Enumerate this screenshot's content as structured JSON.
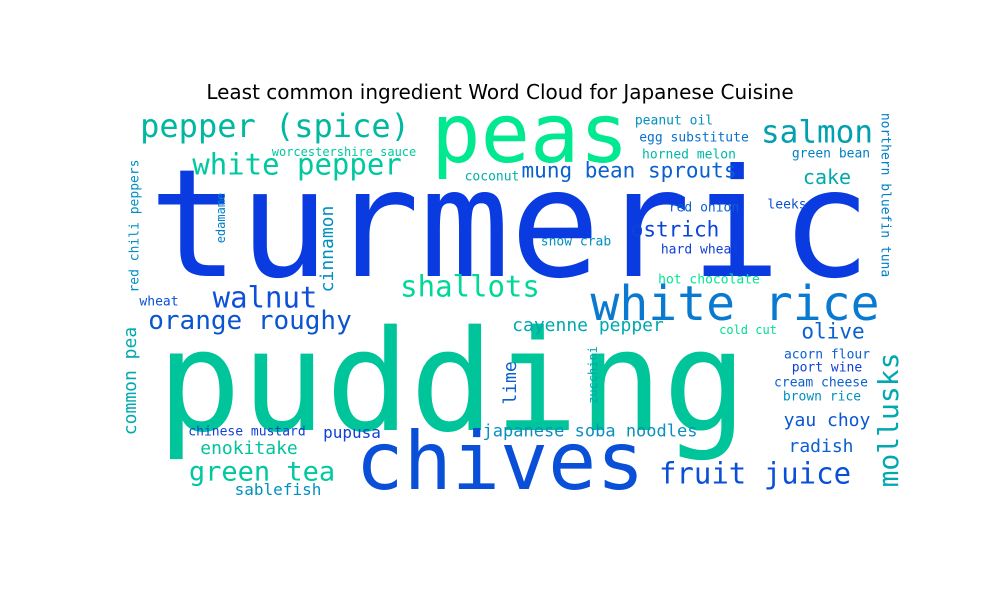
{
  "title": "Least common ingredient Word Cloud for Japanese Cuisine",
  "chart_data": {
    "type": "wordcloud",
    "title": "Least common ingredient Word Cloud for Japanese Cuisine",
    "words": [
      {
        "text": "turmeric",
        "weight": 100,
        "color": "#0a3be0"
      },
      {
        "text": "pudding",
        "weight": 96,
        "color": "#00c49a"
      },
      {
        "text": "peas",
        "weight": 56,
        "color": "#00e890"
      },
      {
        "text": "chives",
        "weight": 55,
        "color": "#0a4fd8"
      },
      {
        "text": "white rice",
        "weight": 33,
        "color": "#0a7ad0"
      },
      {
        "text": "pepper (spice)",
        "weight": 22,
        "color": "#00b8a0"
      },
      {
        "text": "salmon",
        "weight": 21,
        "color": "#00a0b0"
      },
      {
        "text": "white pepper",
        "weight": 20,
        "color": "#00c8a0"
      },
      {
        "text": "shallots",
        "weight": 20,
        "color": "#00d898"
      },
      {
        "text": "walnut",
        "weight": 20,
        "color": "#1050d8"
      },
      {
        "text": "fruit juice",
        "weight": 20,
        "color": "#0a4fd8"
      },
      {
        "text": "mollusks",
        "weight": 19,
        "color": "#00a8b0"
      },
      {
        "text": "green tea",
        "weight": 18,
        "color": "#00c8a0"
      },
      {
        "text": "orange roughy",
        "weight": 18,
        "color": "#0a55d0"
      },
      {
        "text": "mung bean sprouts",
        "weight": 14,
        "color": "#0a60d0"
      },
      {
        "text": "ostrich",
        "weight": 14,
        "color": "#0a45d8"
      },
      {
        "text": "olive",
        "weight": 14,
        "color": "#0a60d0"
      },
      {
        "text": "cake",
        "weight": 13,
        "color": "#00a8b0"
      },
      {
        "text": "cayenne pepper",
        "weight": 12,
        "color": "#00a8b0"
      },
      {
        "text": "cinnamon",
        "weight": 12,
        "color": "#0090c0"
      },
      {
        "text": "common pea",
        "weight": 12,
        "color": "#00a8b0"
      },
      {
        "text": "enokitake",
        "weight": 12,
        "color": "#00c49a"
      },
      {
        "text": "radish",
        "weight": 12,
        "color": "#0a60d0"
      },
      {
        "text": "lime",
        "weight": 12,
        "color": "#0a60d0"
      },
      {
        "text": "yau choy",
        "weight": 12,
        "color": "#0a55d0"
      },
      {
        "text": "japanese soba noodles",
        "weight": 12,
        "color": "#0a90c0"
      },
      {
        "text": "pupusa",
        "weight": 11,
        "color": "#1040d8"
      },
      {
        "text": "sablefish",
        "weight": 11,
        "color": "#0090c0"
      },
      {
        "text": "peanut oil",
        "weight": 9,
        "color": "#0090c0"
      },
      {
        "text": "egg substitute",
        "weight": 9,
        "color": "#0a70d0"
      },
      {
        "text": "horned melon",
        "weight": 9,
        "color": "#00b8a8"
      },
      {
        "text": "green bean",
        "weight": 9,
        "color": "#0080c8"
      },
      {
        "text": "worcestershire sauce",
        "weight": 9,
        "color": "#00c8a0"
      },
      {
        "text": "coconut",
        "weight": 9,
        "color": "#00b0a8"
      },
      {
        "text": "red onion",
        "weight": 9,
        "color": "#0a60d0"
      },
      {
        "text": "leeks",
        "weight": 9,
        "color": "#0a50d8"
      },
      {
        "text": "snow crab",
        "weight": 9,
        "color": "#0090c0"
      },
      {
        "text": "hard wheat",
        "weight": 9,
        "color": "#1040d8"
      },
      {
        "text": "hot chocolate",
        "weight": 9,
        "color": "#00e890"
      },
      {
        "text": "wheat",
        "weight": 9,
        "color": "#0a50d8"
      },
      {
        "text": "cold cut",
        "weight": 9,
        "color": "#00e090"
      },
      {
        "text": "acorn flour",
        "weight": 9,
        "color": "#0a60d0"
      },
      {
        "text": "port wine",
        "weight": 9,
        "color": "#1040d8"
      },
      {
        "text": "cream cheese",
        "weight": 9,
        "color": "#0a60d0"
      },
      {
        "text": "brown rice",
        "weight": 9,
        "color": "#0090c0"
      },
      {
        "text": "chinese mustard",
        "weight": 9,
        "color": "#1040d8"
      },
      {
        "text": "edamame",
        "weight": 9,
        "color": "#0080c8"
      },
      {
        "text": "red chili peppers",
        "weight": 9,
        "color": "#0090c0"
      },
      {
        "text": "zucchini",
        "weight": 9,
        "color": "#00a8b0"
      },
      {
        "text": "northern bluefin tuna",
        "weight": 9,
        "color": "#0080c8"
      }
    ]
  }
}
